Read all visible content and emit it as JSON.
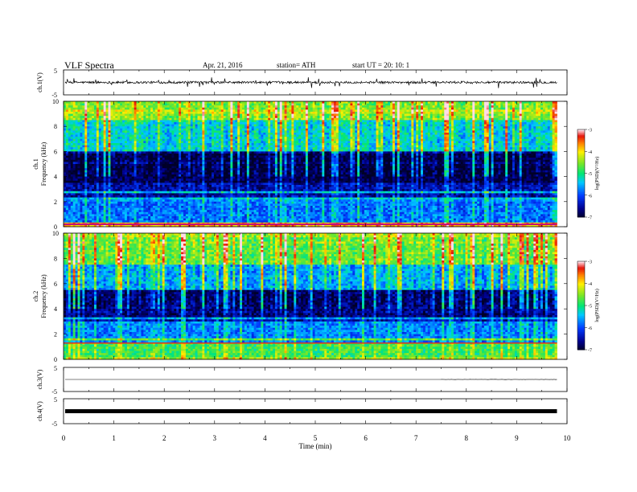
{
  "header": {
    "title": "VLF  Spectra",
    "date": "Apr. 21, 2016",
    "station": "station= ATH",
    "start": "start  UT  =   20: 10: 1"
  },
  "chart_data": [
    {
      "type": "line",
      "panel": "ch1-waveform",
      "ylabel": "ch.1(V)",
      "yticks": [
        "5",
        "-5"
      ],
      "ylim": [
        -5,
        5
      ],
      "xlim": [
        0,
        10
      ],
      "description_values": {
        "baseline": 0,
        "typical_amplitude": 0.5,
        "spike_max": 2.5
      }
    },
    {
      "type": "heatmap",
      "panel": "ch1-spectrogram",
      "ylabel": "ch.1\nFrequency  (kHz)",
      "ylabel_lines": [
        "ch.1",
        "Frequency  (kHz)"
      ],
      "yticks": [
        "0",
        "2",
        "4",
        "6",
        "8",
        "10"
      ],
      "ylim": [
        0,
        10
      ],
      "xlim": [
        0,
        10
      ],
      "data_end_min": 9.8,
      "bands": [
        {
          "from": 0,
          "to": 0.3,
          "level": -3.8
        },
        {
          "from": 0.3,
          "to": 2.0,
          "level": -5.8
        },
        {
          "from": 2.0,
          "to": 3.5,
          "level": -6.5
        },
        {
          "from": 3.5,
          "to": 6.0,
          "level": -6.9
        },
        {
          "from": 6.0,
          "to": 8.5,
          "level": -5.3
        },
        {
          "from": 8.5,
          "to": 10,
          "level": -4.5
        }
      ],
      "colorbar": {
        "label": "log(PSD)(V²/Hz)",
        "ticks": [
          "-3",
          "-4",
          "-5",
          "-6",
          "-7"
        ],
        "range": [
          -7,
          -3
        ]
      }
    },
    {
      "type": "heatmap",
      "panel": "ch2-spectrogram",
      "ylabel": "ch.2\nFrequency  (kHz)",
      "ylabel_lines": [
        "ch.2",
        "Frequency  (kHz)"
      ],
      "yticks": [
        "0",
        "2",
        "4",
        "6",
        "8",
        "10"
      ],
      "ylim": [
        0,
        10
      ],
      "xlim": [
        0,
        10
      ],
      "data_end_min": 9.8,
      "bands": [
        {
          "from": 0,
          "to": 1.3,
          "level": -4.8
        },
        {
          "from": 1.3,
          "to": 3.0,
          "level": -5.7
        },
        {
          "from": 3.0,
          "to": 5.5,
          "level": -6.7
        },
        {
          "from": 5.5,
          "to": 7.5,
          "level": -5.5
        },
        {
          "from": 7.5,
          "to": 10,
          "level": -4.6
        }
      ],
      "colorbar": {
        "label": "log(PSD)(V²/Hz)",
        "ticks": [
          "-3",
          "-4",
          "-5",
          "-6",
          "-7"
        ],
        "range": [
          -7,
          -3
        ]
      }
    },
    {
      "type": "line",
      "panel": "ch3-waveform",
      "ylabel": "ch.3(V)",
      "yticks": [
        "5",
        "-5"
      ],
      "ylim": [
        -5,
        5
      ],
      "xlim": [
        0,
        10
      ],
      "description_values": {
        "baseline": 0
      }
    },
    {
      "type": "line",
      "panel": "ch4-waveform",
      "ylabel": "ch.4(V)",
      "yticks": [
        "5",
        "-5"
      ],
      "ylim": [
        -5,
        5
      ],
      "xlim": [
        0,
        10
      ],
      "description_values": {
        "baseline": 0
      }
    }
  ],
  "xaxis": {
    "label": "Time  (min)",
    "ticks": [
      "0",
      "1",
      "2",
      "3",
      "4",
      "5",
      "6",
      "7",
      "8",
      "9",
      "10"
    ]
  }
}
